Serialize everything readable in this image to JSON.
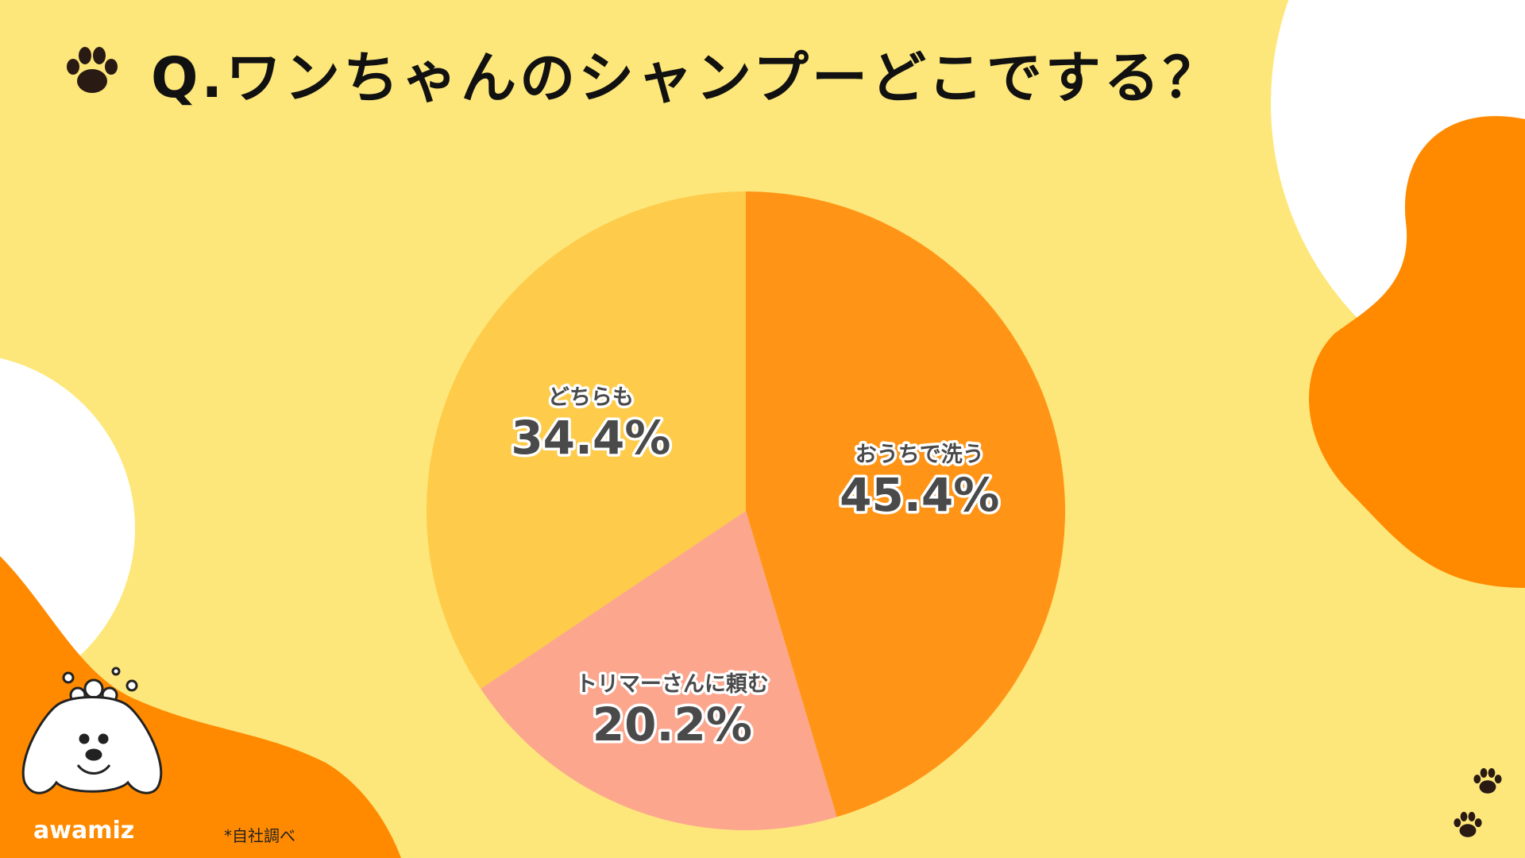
{
  "title": "Q.ワンちゃんのシャンプーどこでする？",
  "brand": "awamiz",
  "note": "*自社調べ",
  "colors": {
    "background": "#FDE77A",
    "accent": "#FF8A00"
  },
  "chart_data": {
    "type": "pie",
    "title": "Q.ワンちゃんのシャンプーどこでする？",
    "start": "top, clockwise",
    "slices": [
      {
        "label": "おうちで洗う",
        "value": 45.4,
        "display": "45.4%",
        "color": "#FF9416"
      },
      {
        "label": "トリマーさんに頼む",
        "value": 20.2,
        "display": "20.2%",
        "color": "#FCA68E"
      },
      {
        "label": "どちらも",
        "value": 34.4,
        "display": "34.4%",
        "color": "#FECB4A"
      }
    ]
  }
}
